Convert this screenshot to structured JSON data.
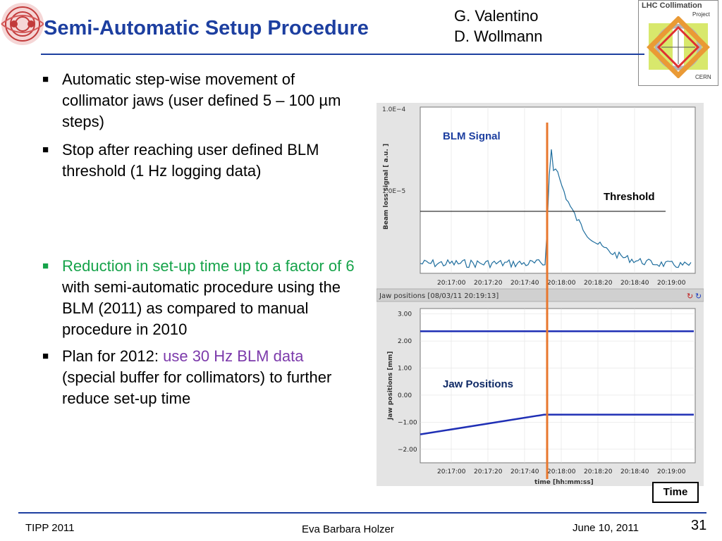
{
  "title": "Semi-Automatic Setup Procedure",
  "authors": [
    "G. Valentino",
    "D. Wollmann"
  ],
  "logo": {
    "line1": "LHC Collimation",
    "line2": "Project",
    "line3": "CERN"
  },
  "bullets": [
    {
      "text": "Automatic step-wise movement of collimator jaws (user defined 5 – 100 µm steps)"
    },
    {
      "text": "Stop after reaching user defined BLM threshold (1 Hz logging data)"
    }
  ],
  "bullets2": {
    "b1_green": "Reduction in set-up time up to a factor of 6",
    "b1_rest": " with semi-automatic procedure using the BLM (2011) as compared to manual procedure in 2010",
    "b2_pre": "Plan for 2012: ",
    "b2_purple": "use 30 Hz BLM data",
    "b2_rest": " (special buffer for collimators) to further reduce set-up time"
  },
  "chart_data": [
    {
      "type": "line",
      "ylabel": "Beam loss signal [ a.u. ]",
      "x_ticks": [
        "20:17:00",
        "20:17:20",
        "20:17:40",
        "20:18:00",
        "20:18:20",
        "20:18:40",
        "20:19:00"
      ],
      "y_ticks": [
        "1.0E−4",
        "1.0E−5"
      ],
      "annotations": {
        "signal": "BLM Signal",
        "threshold": "Threshold"
      },
      "series": [
        {
          "name": "BLM Signal"
        }
      ]
    },
    {
      "type": "line",
      "header": "Jaw positions  [08/03/11 20:19:13]",
      "ylabel": "Jaw positions [mm]",
      "xlabel": "time [hh:mm:ss]",
      "x_ticks": [
        "20:17:00",
        "20:17:20",
        "20:17:40",
        "20:18:00",
        "20:18:20",
        "20:18:40",
        "20:19:00"
      ],
      "y_ticks": [
        "3.00",
        "2.00",
        "1.00",
        "0.00",
        "−1.00",
        "−2.00"
      ],
      "ylim": [
        -2.5,
        3.2
      ],
      "annotation": "Jaw Positions",
      "series": [
        {
          "values_start": 2.36,
          "values_end": 2.36
        },
        {
          "values_start": -1.45,
          "values_end": -0.72,
          "break_time": "20:17:47"
        }
      ]
    }
  ],
  "time_label": "Time",
  "footer": {
    "left": "TIPP 2011",
    "center": "Eva Barbara Holzer",
    "right": "June 10, 2011",
    "page": "31"
  },
  "colors": {
    "title": "#1d3fa0",
    "green": "#16a34a",
    "purple": "#7c3aab",
    "marker": "#e8772e",
    "blm": "#1f6e9e",
    "jaw": "#1f2fb5"
  }
}
